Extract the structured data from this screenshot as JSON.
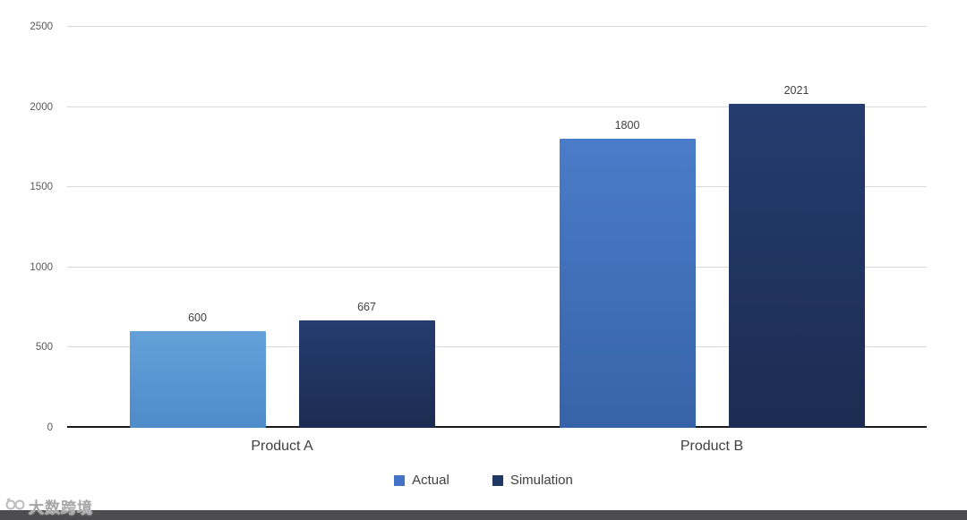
{
  "chart_data": {
    "type": "bar",
    "categories": [
      "Product A",
      "Product B"
    ],
    "series": [
      {
        "name": "Actual",
        "values": [
          600,
          1800
        ]
      },
      {
        "name": "Simulation",
        "values": [
          667,
          2021
        ]
      }
    ],
    "data_labels": [
      [
        "600",
        "1800"
      ],
      [
        "667",
        "2021"
      ]
    ],
    "ylim": [
      0,
      2500
    ],
    "yticks": [
      "2500",
      "2000",
      "1500",
      "1000",
      "500",
      "0"
    ],
    "grid": true,
    "legend_position": "bottom",
    "bar_colors": [
      [
        [
          "#64A0D8",
          "#4E8BC9"
        ],
        [
          "#4A7CC9",
          "#3763A8"
        ]
      ],
      [
        [
          "#253C6E",
          "#1C2C52"
        ],
        [
          "#253C6E",
          "#1C2C52"
        ]
      ]
    ],
    "legend_colors": [
      "#4472C4",
      "#203864"
    ]
  },
  "watermark": {
    "text": "大数跨境",
    "icon": "glasses-logo-icon"
  }
}
